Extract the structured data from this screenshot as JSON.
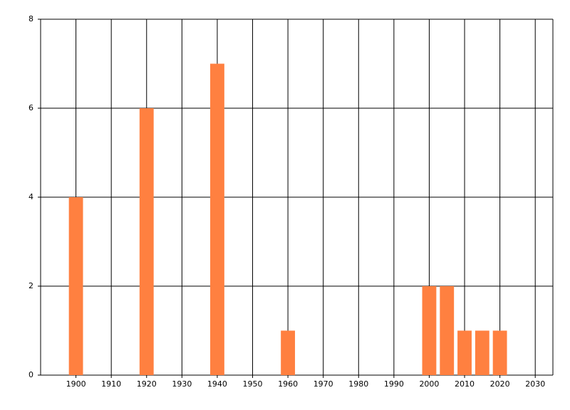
{
  "chart_data": {
    "type": "bar",
    "x": [
      1900,
      1920,
      1940,
      1960,
      2000,
      2005,
      2010,
      2015,
      2020
    ],
    "values": [
      4,
      6,
      7,
      1,
      2,
      2,
      1,
      1,
      1
    ],
    "color": "#ff8040",
    "xlim": [
      1890,
      2035
    ],
    "xticks": [
      1900,
      1910,
      1920,
      1930,
      1940,
      1950,
      1960,
      1970,
      1980,
      1990,
      2000,
      2010,
      2020,
      2030
    ],
    "ylim": [
      0,
      8
    ],
    "yticks": [
      0,
      2,
      4,
      6,
      8
    ],
    "grid": true
  }
}
